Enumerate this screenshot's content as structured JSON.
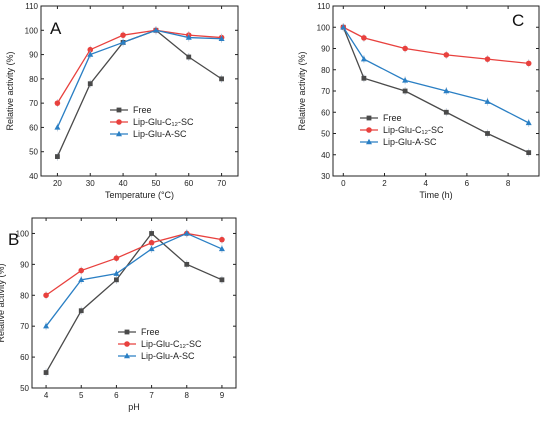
{
  "chart_data": [
    {
      "type": "line",
      "panel": "A",
      "xlabel": "Temperature (°C)",
      "ylabel": "Relative activity (%)",
      "xlim": [
        15,
        75
      ],
      "ylim": [
        40,
        110
      ],
      "xticks": [
        "20",
        "30",
        "40",
        "50",
        "60",
        "70"
      ],
      "yticks": [
        "40",
        "50",
        "60",
        "70",
        "80",
        "90",
        "100",
        "110"
      ],
      "legend_position": "bottom-right",
      "x": [
        20,
        30,
        40,
        50,
        60,
        70
      ],
      "series": [
        {
          "name": "Free",
          "color": "#4a4a4a",
          "marker": "square",
          "values": [
            48,
            78,
            95,
            100,
            89,
            80
          ]
        },
        {
          "name": "Lip-Glu-C₁₂-SC",
          "color": "#e8413e",
          "marker": "circle",
          "values": [
            70,
            92,
            98,
            100,
            98,
            97
          ]
        },
        {
          "name": "Lip-Glu-A-SC",
          "color": "#2a7fc4",
          "marker": "triangle",
          "values": [
            60,
            90,
            95,
            100,
            97,
            96.5
          ]
        }
      ]
    },
    {
      "type": "line",
      "panel": "C",
      "xlabel": "Time (h)",
      "ylabel": "Relative activity (%)",
      "xlim": [
        -0.5,
        9.5
      ],
      "ylim": [
        30,
        110
      ],
      "xticks": [
        "0",
        "2",
        "4",
        "6",
        "8"
      ],
      "yticks": [
        "30",
        "40",
        "50",
        "60",
        "70",
        "80",
        "90",
        "100",
        "110"
      ],
      "legend_position": "bottom-left",
      "x": [
        0,
        1,
        3,
        5,
        7,
        9
      ],
      "series": [
        {
          "name": "Free",
          "color": "#4a4a4a",
          "marker": "square",
          "values": [
            100,
            76,
            70,
            60,
            50,
            41
          ]
        },
        {
          "name": "Lip-Glu-C₁₂-SC",
          "color": "#e8413e",
          "marker": "circle",
          "values": [
            100,
            95,
            90,
            87,
            85,
            83
          ]
        },
        {
          "name": "Lip-Glu-A-SC",
          "color": "#2a7fc4",
          "marker": "triangle",
          "values": [
            100,
            85,
            75,
            70,
            65,
            55
          ]
        }
      ]
    },
    {
      "type": "line",
      "panel": "B",
      "xlabel": "pH",
      "ylabel": "Relative activity (%)",
      "xlim": [
        3.6,
        9.4
      ],
      "ylim": [
        50,
        105
      ],
      "xticks": [
        "4",
        "5",
        "6",
        "7",
        "8",
        "9"
      ],
      "yticks": [
        "50",
        "60",
        "70",
        "80",
        "90",
        "100"
      ],
      "legend_position": "bottom-right",
      "x": [
        4,
        5,
        6,
        7,
        8,
        9
      ],
      "series": [
        {
          "name": "Free",
          "color": "#4a4a4a",
          "marker": "square",
          "values": [
            55,
            75,
            85,
            100,
            90,
            85
          ]
        },
        {
          "name": "Lip-Glu-C₁₂-SC",
          "color": "#e8413e",
          "marker": "circle",
          "values": [
            80,
            88,
            92,
            97,
            100,
            98
          ]
        },
        {
          "name": "Lip-Glu-A-SC",
          "color": "#2a7fc4",
          "marker": "triangle",
          "values": [
            70,
            85,
            87,
            95,
            100,
            95
          ]
        }
      ]
    }
  ]
}
